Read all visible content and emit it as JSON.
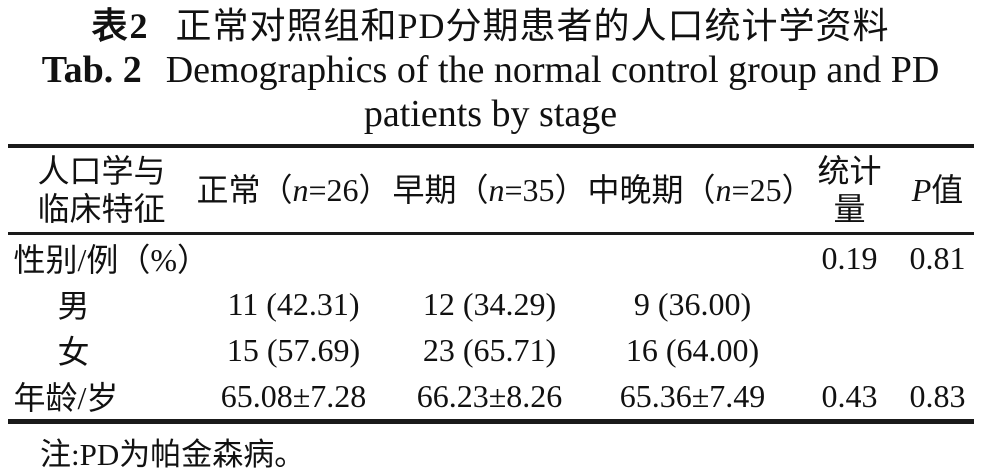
{
  "title": {
    "zh_label": "表2",
    "zh_text": "正常对照组和PD分期患者的人口统计学资料",
    "en_label": "Tab. 2",
    "en_text": "Demographics of the normal control group and PD",
    "en_text_line2": "patients by stage"
  },
  "table": {
    "header": {
      "col1_line1": "人口学与",
      "col1_line2": "临床特征",
      "col2_pre": "正常（",
      "col2_var": "n",
      "col2_post": "=26）",
      "col3_pre": "早期（",
      "col3_var": "n",
      "col3_post": "=35）",
      "col4_pre": "中晚期（",
      "col4_var": "n",
      "col4_post": "=25）",
      "col5_line1": "统计",
      "col5_line2": "量",
      "col6_var": "P",
      "col6_post": "值"
    },
    "rows": [
      {
        "label": "性别/例（%）",
        "values": [
          "",
          "",
          "",
          "0.19",
          "0.81"
        ]
      },
      {
        "label": "男",
        "values": [
          "11 (42.31)",
          "12 (34.29)",
          "9 (36.00)",
          "",
          ""
        ]
      },
      {
        "label": "女",
        "values": [
          "15 (57.69)",
          "23 (65.71)",
          "16 (64.00)",
          "",
          ""
        ]
      },
      {
        "label": "年龄/岁",
        "values": [
          "65.08±7.28",
          "66.23±8.26",
          "65.36±7.49",
          "0.43",
          "0.83"
        ]
      }
    ],
    "note": "注:PD为帕金森病。"
  },
  "colors": {
    "text": "#111111",
    "rule": "#1a1a1a",
    "background": "#ffffff"
  }
}
